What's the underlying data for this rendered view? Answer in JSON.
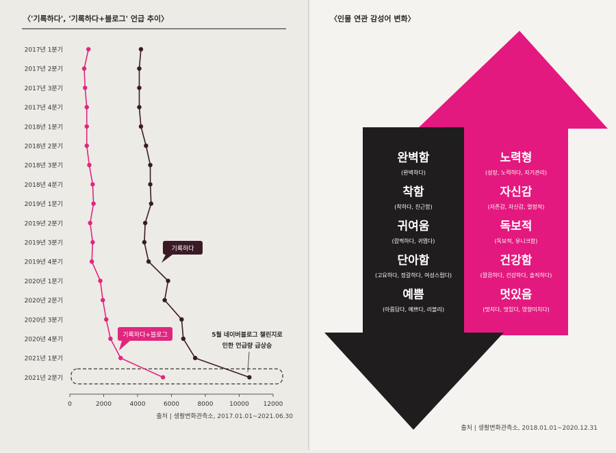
{
  "left_chart": {
    "title": "〈'기록하다', '기록하다+블로그' 언급 추이〉",
    "source": "출처 | 생활변화관측소, 2017.01.01~2021.06.30",
    "annotation": [
      "5월 네이버블로그 챌린지로",
      "인한 언급량 급상승"
    ],
    "label_blog": "기록하다+블로그",
    "label_record": "기록하다"
  },
  "chart_data": [
    {
      "type": "line",
      "title": "〈'기록하다', '기록하다+블로그' 언급 추이〉",
      "categories": [
        "2017년 1분기",
        "2017년 2분기",
        "2017년 3분기",
        "2017년 4분기",
        "2018년 1분기",
        "2018년 2분기",
        "2018년 3분기",
        "2018년 4분기",
        "2019년 1분기",
        "2019년 2분기",
        "2019년 3분기",
        "2019년 4분기",
        "2020년 1분기",
        "2020년 2분기",
        "2020년 3분기",
        "2020년 4분기",
        "2021년 1분기",
        "2021년 2분기"
      ],
      "xlim": [
        0,
        12000
      ],
      "xticks": [
        0,
        2000,
        4000,
        6000,
        8000,
        10000,
        12000
      ],
      "series": [
        {
          "name": "기록하다",
          "color": "#3a1a25",
          "values": [
            4200,
            4100,
            4100,
            4100,
            4200,
            4500,
            4750,
            4750,
            4800,
            4450,
            4400,
            4650,
            5800,
            5600,
            6600,
            6700,
            7400,
            10600
          ]
        },
        {
          "name": "기록하다+블로그",
          "color": "#e0267f",
          "values": [
            1100,
            850,
            900,
            1000,
            1000,
            1000,
            1150,
            1350,
            1400,
            1200,
            1350,
            1300,
            1800,
            1950,
            2150,
            2400,
            3000,
            5500
          ]
        }
      ]
    },
    {
      "type": "table",
      "title": "〈인물 연관 감성어 변화〉",
      "source": "출처 | 생활변화관측소, 2018.01.01~2020.12.31",
      "down_words": [
        {
          "word": "완벽함",
          "sub": "(완벽하다)"
        },
        {
          "word": "착함",
          "sub": "(착하다, 친근함)"
        },
        {
          "word": "귀여움",
          "sub": "(깜찍하다, 귀엽다)"
        },
        {
          "word": "단아함",
          "sub": "(고요하다, 정갈하다, 여성스럽다)"
        },
        {
          "word": "예쁨",
          "sub": "(아름답다, 예쁘다, 러블리)"
        }
      ],
      "up_words": [
        {
          "word": "노력형",
          "sub": "(성장, 노력하다, 자기관리)"
        },
        {
          "word": "자신감",
          "sub": "(자존감, 자신감, 열정적)"
        },
        {
          "word": "독보적",
          "sub": "(독보적, 유니크함)"
        },
        {
          "word": "건강함",
          "sub": "(깔끔하다, 건강하다, 솔직하다)"
        },
        {
          "word": "멋있음",
          "sub": "(멋지다, 멋있다, 영향미치다)"
        }
      ],
      "colors": {
        "down": "#1f1d1e",
        "up": "#e3197f"
      }
    }
  ]
}
